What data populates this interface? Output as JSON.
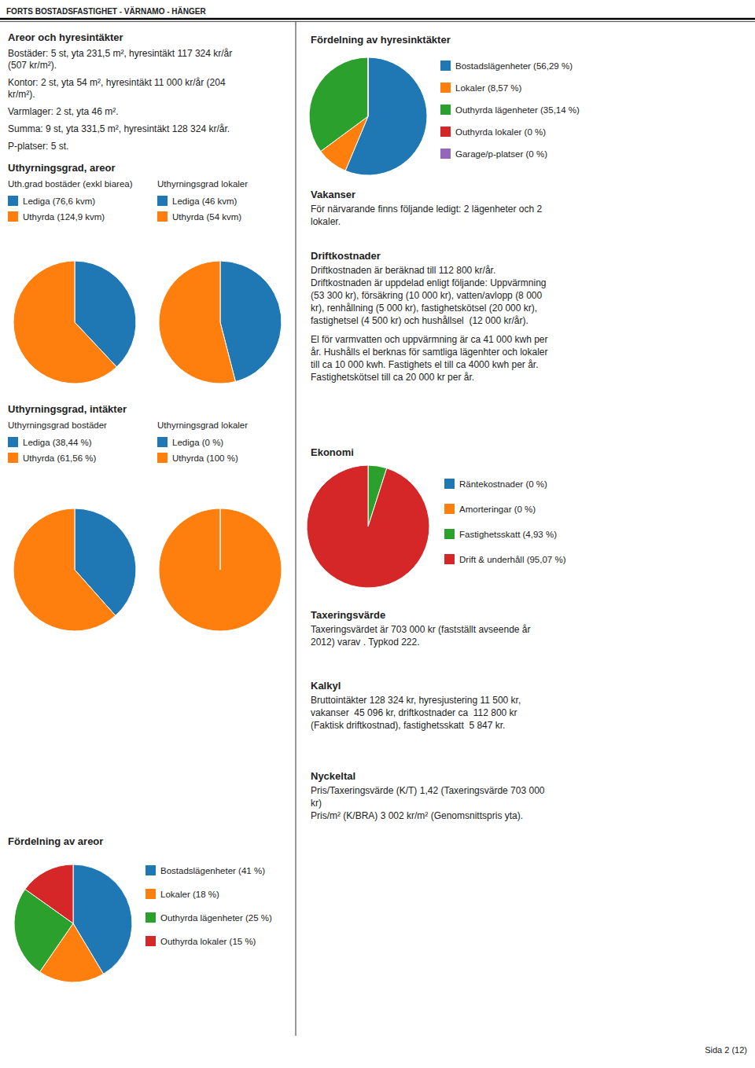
{
  "title": "FORTS BOSTADSFASTIGHET - VÄRNAMO - HÄNGER",
  "annotations": [
    "Sida 2 (12)"
  ],
  "chart_data": [
    {
      "type": "text",
      "title": "Areor och hyresintäkter",
      "annotations": [
        "Bostäder: 5 st, yta 231,5 m², hyresintäkt 117 324 kr/år\n(507 kr/m²).",
        "Kontor: 2 st, yta 54 m², hyresintäkt 11 000 kr/år (204\nkr/m²).",
        "Varmlager: 2 st, yta 46 m².",
        "Summa: 9 st, yta 331,5 m², hyresintäkt 128 324 kr/år.",
        "P-platser: 5 st."
      ]
    },
    {
      "type": "pie",
      "title": "Uthyrningsgrad, areor",
      "subtitle": "Uth.grad bostäder (exkl biarea)",
      "categories": [
        "Lediga (76,6 kvm)",
        "Uthyrda (124,9 kvm)"
      ],
      "values": [
        76.6,
        124.9
      ]
    },
    {
      "type": "pie",
      "subtitle": "Uthyrningsgrad lokaler",
      "categories": [
        "Lediga (46 kvm)",
        "Uthyrda (54 kvm)"
      ],
      "values": [
        46,
        54
      ]
    },
    {
      "type": "pie",
      "title": "Uthyrningsgrad, intäkter",
      "subtitle": "Uthyrningsgrad bostäder",
      "categories": [
        "Lediga (38,44 %)",
        "Uthyrda (61,56 %)"
      ],
      "values": [
        38.44,
        61.56
      ]
    },
    {
      "type": "pie",
      "subtitle": "Uthyrningsgrad lokaler",
      "categories": [
        "Lediga (0 %)",
        "Uthyrda (100 %)"
      ],
      "values": [
        0.001,
        99.999
      ]
    },
    {
      "type": "pie",
      "title": "Fördelning av areor",
      "categories": [
        "Bostadslägenheter (41 %)",
        "Lokaler (18 %)",
        "Outhyrda lägenheter (25 %)",
        "Outhyrda lokaler (15 %)"
      ],
      "values": [
        41,
        18,
        25,
        15
      ]
    },
    {
      "type": "pie",
      "title": "Fördelning av hyresinktäkter",
      "categories": [
        "Bostadslägenheter (56,29 %)",
        "Lokaler (8,57 %)",
        "Outhyrda lägenheter (35,14 %)",
        "Outhyrda lokaler (0 %)",
        "Garage/p-platser (0 %)"
      ],
      "values": [
        56.29,
        8.57,
        35.14,
        0.001,
        0.001
      ]
    },
    {
      "type": "text",
      "title": "Vakanser",
      "annotations": [
        "För närvarande finns följande ledigt: 2 lägenheter och 2\nlokaler."
      ]
    },
    {
      "type": "text",
      "title": "Driftkostnader",
      "annotations": [
        "Driftkostnaden är beräknad till 112 800 kr/år.\nDriftkostnaden är uppdelad enligt följande: Uppvärmning\n(53 300 kr), försäkring (10 000 kr), vatten/avlopp (8 000\nkr), renhållning (5 000 kr), fastighetskötsel (20 000 kr),\nfastighetsel (4 500 kr) och hushållsel  (12 000 kr/år).",
        "El för varmvatten och uppvärmning är ca 41 000 kwh per\når. Hushålls el berknas för samtliga lägenhter och lokaler\ntill ca 10 000 kwh. Fastighets el till ca 4000 kwh per år.\nFastighetskötsel till ca 20 000 kr per år."
      ]
    },
    {
      "type": "pie",
      "title": "Ekonomi",
      "categories": [
        "Räntekostnader (0 %)",
        "Amorteringar (0 %)",
        "Fastighetsskatt (4,93 %)",
        "Drift & underhåll (95,07 %)"
      ],
      "values": [
        0.001,
        0.001,
        4.93,
        95.07
      ]
    },
    {
      "type": "text",
      "title": "Taxeringsvärde",
      "annotations": [
        "Taxeringsvärdet är 703 000 kr (fastställt avseende år\n2012) varav . Typkod 222."
      ]
    },
    {
      "type": "text",
      "title": "Kalkyl",
      "annotations": [
        "Bruttointäkter 128 324 kr, hyresjustering 11 500 kr,\nvakanser  45 096 kr, driftkostnader ca  112 800 kr\n(Faktisk driftkostnad), fastighetsskatt  5 847 kr."
      ]
    },
    {
      "type": "text",
      "title": "Nyckeltal",
      "annotations": [
        "Pris/Taxeringsvärde (K/T) 1,42 (Taxeringsvärde 703 000\nkr)\nPris/m² (K/BRA) 3 002 kr/m² (Genomsnittspris yta)."
      ]
    }
  ]
}
